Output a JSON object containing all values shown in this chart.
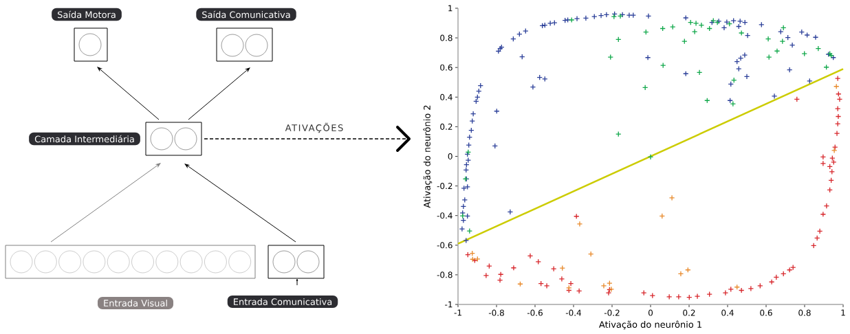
{
  "chart_data": [
    {
      "type": "other",
      "annotations": [
        "Saída Motora",
        "Saída Comunicativa",
        "Camada Intermediária",
        "ATIVAÇÕES",
        "Entrada Visual",
        "Entrada Comunicativa"
      ]
    },
    {
      "type": "scatter",
      "xlabel": "Ativação do neurônio 1",
      "ylabel": "Ativação do neurônio 2",
      "xlim": [
        -1,
        1
      ],
      "ylim": [
        -1,
        1
      ],
      "xticks": [
        -1,
        -0.8,
        -0.6,
        -0.4,
        -0.2,
        0,
        0.2,
        0.4,
        0.6,
        0.8,
        1
      ],
      "yticks": [
        -1,
        -0.8,
        -0.6,
        -0.4,
        -0.2,
        0,
        0.2,
        0.4,
        0.6,
        0.8,
        1
      ],
      "marker": "cross",
      "series": [
        {
          "color": "#2b3f99",
          "x": [
            -0.906,
            -0.899,
            -0.892,
            -0.883,
            -0.79,
            -0.781,
            -0.774,
            -0.713,
            -0.681,
            -0.649,
            -0.667,
            -0.562,
            -0.549,
            -0.521,
            -0.499,
            -0.444,
            -0.43,
            -0.382,
            -0.336,
            -0.292,
            -0.257,
            -0.229,
            -0.187,
            -0.146,
            -0.111,
            -0.09,
            -0.011,
            -0.611,
            -0.576,
            -0.549,
            -0.014,
            0.183,
            0.183,
            0.319,
            0.354,
            0.382,
            0.396,
            0.431,
            0.458,
            0.465,
            0.49,
            0.504,
            0.449,
            0.468,
            0.489,
            0.458,
            0.5,
            0.417,
            0.413,
            0.576,
            0.676,
            0.713,
            0.736,
            0.722,
            0.785,
            0.813,
            0.857,
            0.826,
            0.643,
            0.924,
            0.949,
            -0.799,
            -0.808,
            -0.921,
            -0.926,
            -0.931,
            -0.94,
            -0.944,
            -0.951,
            -0.947,
            -0.956,
            -0.958,
            -0.956,
            -0.951,
            -0.969,
            -0.729,
            -0.965,
            -0.972,
            -0.976,
            -0.951,
            -0.972,
            -0.979,
            -0.958
          ],
          "values": [
            0.372,
            0.4,
            0.44,
            0.477,
            0.71,
            0.728,
            0.737,
            0.793,
            0.825,
            0.846,
            0.672,
            0.882,
            0.886,
            0.898,
            0.902,
            0.918,
            0.921,
            0.93,
            0.933,
            0.944,
            0.951,
            0.956,
            0.961,
            0.956,
            0.953,
            0.953,
            0.947,
            0.468,
            0.533,
            0.523,
            0.667,
            0.558,
            0.935,
            0.904,
            0.912,
            0.868,
            0.907,
            0.916,
            0.877,
            0.912,
            0.904,
            0.816,
            0.64,
            0.663,
            0.684,
            0.591,
            0.539,
            0.488,
            0.377,
            0.889,
            0.842,
            0.802,
            0.751,
            0.584,
            0.839,
            0.819,
            0.804,
            0.509,
            0.407,
            0.689,
            0.667,
            0.305,
            0.07,
            0.287,
            0.238,
            0.176,
            0.129,
            0.076,
            0.014,
            -0.026,
            -0.056,
            -0.092,
            -0.153,
            -0.206,
            -0.215,
            -0.375,
            -0.294,
            -0.338,
            -0.382,
            -0.403,
            -0.432,
            -0.49,
            -0.568
          ]
        },
        {
          "color": "#10a84a",
          "x": [
            -0.41,
            -0.19,
            -0.157,
            -0.167,
            -0.208,
            -0.024,
            0.063,
            0.115,
            0.065,
            -0.028,
            0.176,
            0.208,
            0.236,
            0.264,
            0.229,
            0.254,
            0.306,
            0.326,
            0.347,
            0.41,
            0.472,
            0.433,
            0.294,
            0.428,
            0.611,
            0.615,
            0.657,
            0.685,
            0.69,
            0.799,
            0.871,
            0.913,
            0.931,
            0.938,
            -0.167,
            0,
            -0.947,
            -0.961,
            -0.976,
            -0.94
          ],
          "values": [
            0.921,
            0.944,
            0.947,
            0.789,
            0.67,
            0.839,
            0.863,
            0.874,
            0.614,
            0.465,
            0.777,
            0.904,
            0.898,
            0.886,
            0.842,
            0.567,
            0.863,
            0.916,
            0.904,
            0.895,
            0.833,
            0.514,
            0.377,
            0.354,
            0.793,
            0.67,
            0.711,
            0.777,
            0.868,
            0.693,
            0.728,
            0.602,
            0.693,
            0.681,
            0.15,
            -0.004,
            0.028,
            -0.153,
            -0.402,
            -0.504
          ]
        },
        {
          "color": "#d7262b",
          "x": [
            0.972,
            0.976,
            0.982,
            0.76,
            0.972,
            0.975,
            0.972,
            0.968,
            0.958,
            0.896,
            0.944,
            0.951,
            0.896,
            0.931,
            0.942,
            0.938,
            0.931,
            0.914,
            0.896,
            -0.385,
            0.879,
            0.865,
            0.847,
            0.74,
            0.722,
            0.69,
            0.653,
            0.629,
            0.569,
            0.521,
            0.472,
            0.417,
            0.389,
            0.306,
            0.243,
            0.201,
            0.146,
            0.097,
            0.01,
            -0.035,
            -0.213,
            -0.218,
            -0.371,
            -0.414,
            -0.424,
            -0.461,
            -0.539,
            -0.503,
            -0.569,
            -0.583,
            -0.625,
            -0.711,
            -0.778,
            -0.782,
            -0.838,
            -0.854,
            -0.913,
            -0.949
          ],
          "values": [
            0.526,
            0.421,
            0.386,
            0.386,
            0.322,
            0.269,
            0.22,
            0.155,
            0.062,
            -0.004,
            -0.012,
            -0.039,
            -0.048,
            -0.069,
            -0.104,
            -0.162,
            -0.227,
            -0.335,
            -0.391,
            -0.405,
            -0.505,
            -0.552,
            -0.603,
            -0.75,
            -0.767,
            -0.793,
            -0.816,
            -0.848,
            -0.874,
            -0.893,
            -0.905,
            -0.897,
            -0.922,
            -0.931,
            -0.945,
            -0.952,
            -0.948,
            -0.948,
            -0.94,
            -0.922,
            -0.9,
            -0.922,
            -0.909,
            -0.859,
            -0.905,
            -0.828,
            -0.874,
            -0.759,
            -0.859,
            -0.712,
            -0.672,
            -0.753,
            -0.797,
            -0.836,
            -0.741,
            -0.805,
            -0.703,
            -0.664
          ]
        },
        {
          "color": "#e8892a",
          "x": [
            0.965,
            0.954,
            0.111,
            0.06,
            -0.368,
            -0.31,
            -0.458,
            -0.677,
            -0.926,
            -0.924,
            -0.899,
            -0.243,
            -0.213,
            -0.204,
            -0.424,
            0.157,
            0.194,
            0.449
          ],
          "values": [
            0.472,
            0.04,
            -0.28,
            -0.403,
            -0.457,
            -0.66,
            -0.755,
            -0.862,
            -0.655,
            -0.695,
            -0.693,
            -0.874,
            -0.857,
            -0.897,
            -0.888,
            -0.793,
            -0.767,
            -0.883
          ]
        },
        {
          "type": "line",
          "marker": "none",
          "color": "#cccc00",
          "x": [
            -1,
            1
          ],
          "values": [
            -0.59,
            0.59
          ]
        }
      ]
    }
  ]
}
